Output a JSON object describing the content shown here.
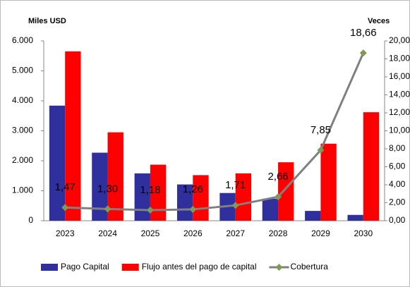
{
  "chart_data": {
    "type": "bar_line",
    "left_axis_title": "Miles USD",
    "right_axis_title": "Veces",
    "categories": [
      "2023",
      "2024",
      "2025",
      "2026",
      "2027",
      "2028",
      "2029",
      "2030"
    ],
    "series": [
      {
        "name": "Pago Capital",
        "color": "#2f2f9e",
        "kind": "bar",
        "values": [
          3840,
          2270,
          1580,
          1210,
          925,
          733,
          327,
          194
        ]
      },
      {
        "name": "Flujo antes del pago de capital",
        "color": "#ff0000",
        "kind": "bar",
        "values": [
          5650,
          2950,
          1870,
          1520,
          1580,
          1950,
          2570,
          3620
        ]
      },
      {
        "name": "Cobertura",
        "color": "#808080",
        "marker_color": "#7f9a55",
        "kind": "line",
        "axis": "y2",
        "values": [
          1.47,
          1.3,
          1.18,
          1.26,
          1.71,
          2.66,
          7.85,
          18.66
        ],
        "value_labels": [
          "1,47",
          "1,30",
          "1,18",
          "1,26",
          "1,71",
          "2,66",
          "7,85",
          "18,66"
        ]
      }
    ],
    "ylim": [
      0,
      6000
    ],
    "yticks": [
      0,
      {
        "value": 1000,
        "label": "1.000"
      },
      {
        "value": 2000,
        "label": "2.000"
      },
      {
        "value": 3000,
        "label": "3.000"
      },
      {
        "value": 4000,
        "label": "4.000"
      },
      {
        "value": 5000,
        "label": "5.000"
      },
      {
        "value": 6000,
        "label": "6.000"
      }
    ],
    "y2lim": [
      0,
      20
    ],
    "y2ticks": [
      {
        "value": 0,
        "label": "0,00"
      },
      {
        "value": 2,
        "label": "2,00"
      },
      {
        "value": 4,
        "label": "4,00"
      },
      {
        "value": 6,
        "label": "6,00"
      },
      {
        "value": 8,
        "label": "8,00"
      },
      {
        "value": 10,
        "label": "10,00"
      },
      {
        "value": 12,
        "label": "12,00"
      },
      {
        "value": 14,
        "label": "14,00"
      },
      {
        "value": 16,
        "label": "16,00"
      },
      {
        "value": 18,
        "label": "18,00"
      },
      {
        "value": 20,
        "label": "20,00"
      }
    ],
    "legend": "bottom"
  }
}
